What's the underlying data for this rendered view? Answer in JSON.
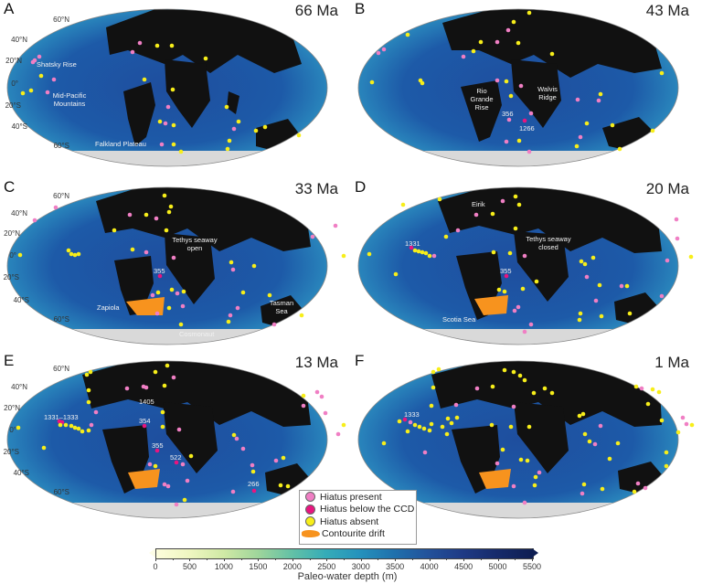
{
  "panels": [
    {
      "letter": "A",
      "age": "66 Ma",
      "lat_labels": [
        "60°N",
        "40°N",
        "20°N",
        "0°",
        "20°S",
        "40°S",
        "60°S"
      ],
      "annotations": [
        "Shatsky Rise",
        "Mid-Pacific Mountains",
        "Falkland Plateau"
      ]
    },
    {
      "letter": "B",
      "age": "43 Ma",
      "lat_labels": [],
      "annotations": [
        "Rio Grande Rise",
        "Walvis Ridge",
        "356",
        "1266"
      ]
    },
    {
      "letter": "C",
      "age": "33 Ma",
      "lat_labels": [
        "60°N",
        "40°N",
        "20°N",
        "0°",
        "20°S",
        "40°S",
        "60°S"
      ],
      "annotations": [
        "Tethys seaway open",
        "355",
        "Zapiola",
        "Tasman Sea",
        "Cosmonaut"
      ]
    },
    {
      "letter": "D",
      "age": "20 Ma",
      "lat_labels": [],
      "annotations": [
        "Eirik",
        "Tethys seaway closed",
        "1331",
        "355",
        "Scotia Sea"
      ]
    },
    {
      "letter": "E",
      "age": "13 Ma",
      "lat_labels": [
        "60°N",
        "40°N",
        "20°N",
        "0°",
        "20°S",
        "40°S",
        "60°S"
      ],
      "annotations": [
        "1405",
        "1331–1333",
        "354",
        "355",
        "522",
        "266"
      ]
    },
    {
      "letter": "F",
      "age": "1 Ma",
      "lat_labels": [],
      "annotations": [
        "1333"
      ]
    }
  ],
  "legend": {
    "items": [
      {
        "label": "Hiatus present",
        "color": "#f07fc4"
      },
      {
        "label": "Hiatus below the CCD",
        "color": "#e8157f"
      },
      {
        "label": "Hiatus absent",
        "color": "#f7ee1a"
      },
      {
        "label": "Contourite drift",
        "color": "#f7931e"
      }
    ]
  },
  "colorbar": {
    "title": "Paleo-water depth (m)",
    "ticks": [
      "0",
      "500",
      "1000",
      "1500",
      "2000",
      "2500",
      "3000",
      "3500",
      "4000",
      "4500",
      "5000",
      "5500"
    ],
    "min": 0,
    "max": 5500,
    "colors": [
      "#fdfddb",
      "#cfe9a5",
      "#63c1a6",
      "#2592bc",
      "#22529b",
      "#0e1e52"
    ]
  },
  "colors": {
    "land": "#111111",
    "ice_shelf": "#d9d9d9",
    "ocean_deep": "#1a3f8f",
    "ocean_shallow": "#5cc3c0"
  }
}
